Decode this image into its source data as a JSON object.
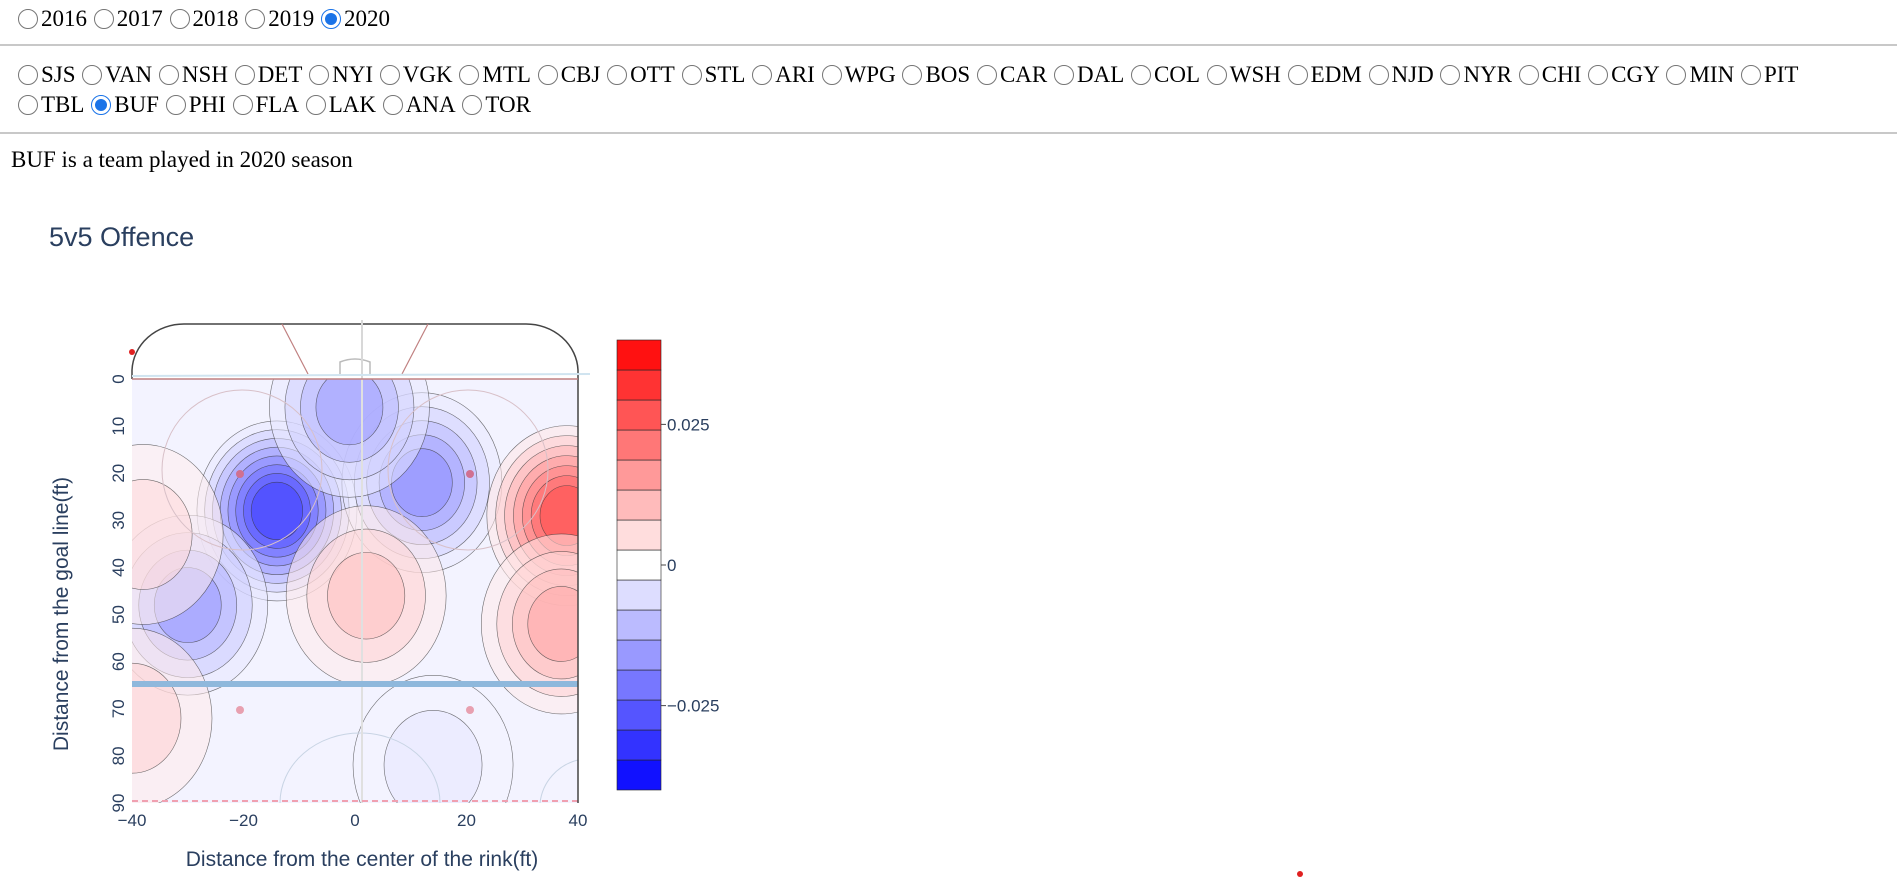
{
  "seasons": {
    "options": [
      "2016",
      "2017",
      "2018",
      "2019",
      "2020"
    ],
    "selected": "2020"
  },
  "teams": {
    "row1": [
      "SJS",
      "VAN",
      "NSH",
      "DET",
      "NYI",
      "VGK",
      "MTL",
      "CBJ",
      "OTT",
      "STL",
      "ARI",
      "WPG",
      "BOS",
      "CAR",
      "DAL",
      "COL",
      "WSH",
      "EDM",
      "NJD",
      "NYR",
      "CHI",
      "CGY",
      "MIN",
      "PIT"
    ],
    "row2": [
      "TBL",
      "BUF",
      "PHI",
      "FLA",
      "LAK",
      "ANA",
      "TOR"
    ],
    "selected": "BUF"
  },
  "status_text": "BUF is a team played in 2020 season",
  "chart_data": {
    "type": "heatmap",
    "subtype": "contour",
    "title": "5v5 Offence",
    "xlabel": "Distance from the center of the rink(ft)",
    "ylabel": "Distance from the goal line(ft)",
    "xlim": [
      -40,
      40
    ],
    "ylim": [
      0,
      90
    ],
    "y_reversed": true,
    "x_ticks": [
      "−40",
      "−20",
      "0",
      "20",
      "40"
    ],
    "y_ticks": [
      "0",
      "10",
      "20",
      "30",
      "40",
      "50",
      "60",
      "70",
      "80",
      "90"
    ],
    "colorscale": {
      "negative": "#0000ff",
      "zero": "#ffffff",
      "positive": "#ff0000"
    },
    "colorbar": {
      "range": [
        -0.04,
        0.04
      ],
      "ticks": [
        {
          "value": 0.025,
          "label": "0.025"
        },
        {
          "value": 0,
          "label": "0"
        },
        {
          "value": -0.025,
          "label": "−0.025"
        }
      ],
      "levels": 15
    },
    "hotspots": [
      {
        "x": -14,
        "y": 28,
        "value": -0.03
      },
      {
        "x": 12,
        "y": 22,
        "value": -0.018
      },
      {
        "x": -1,
        "y": 6,
        "value": -0.015
      },
      {
        "x": -30,
        "y": 48,
        "value": -0.016
      },
      {
        "x": 38,
        "y": 29,
        "value": 0.028
      },
      {
        "x": 37,
        "y": 52,
        "value": 0.014
      },
      {
        "x": 2,
        "y": 46,
        "value": 0.01
      },
      {
        "x": -38,
        "y": 33,
        "value": 0.006
      },
      {
        "x": -40,
        "y": 72,
        "value": 0.007
      },
      {
        "x": 14,
        "y": 82,
        "value": -0.004
      }
    ]
  }
}
